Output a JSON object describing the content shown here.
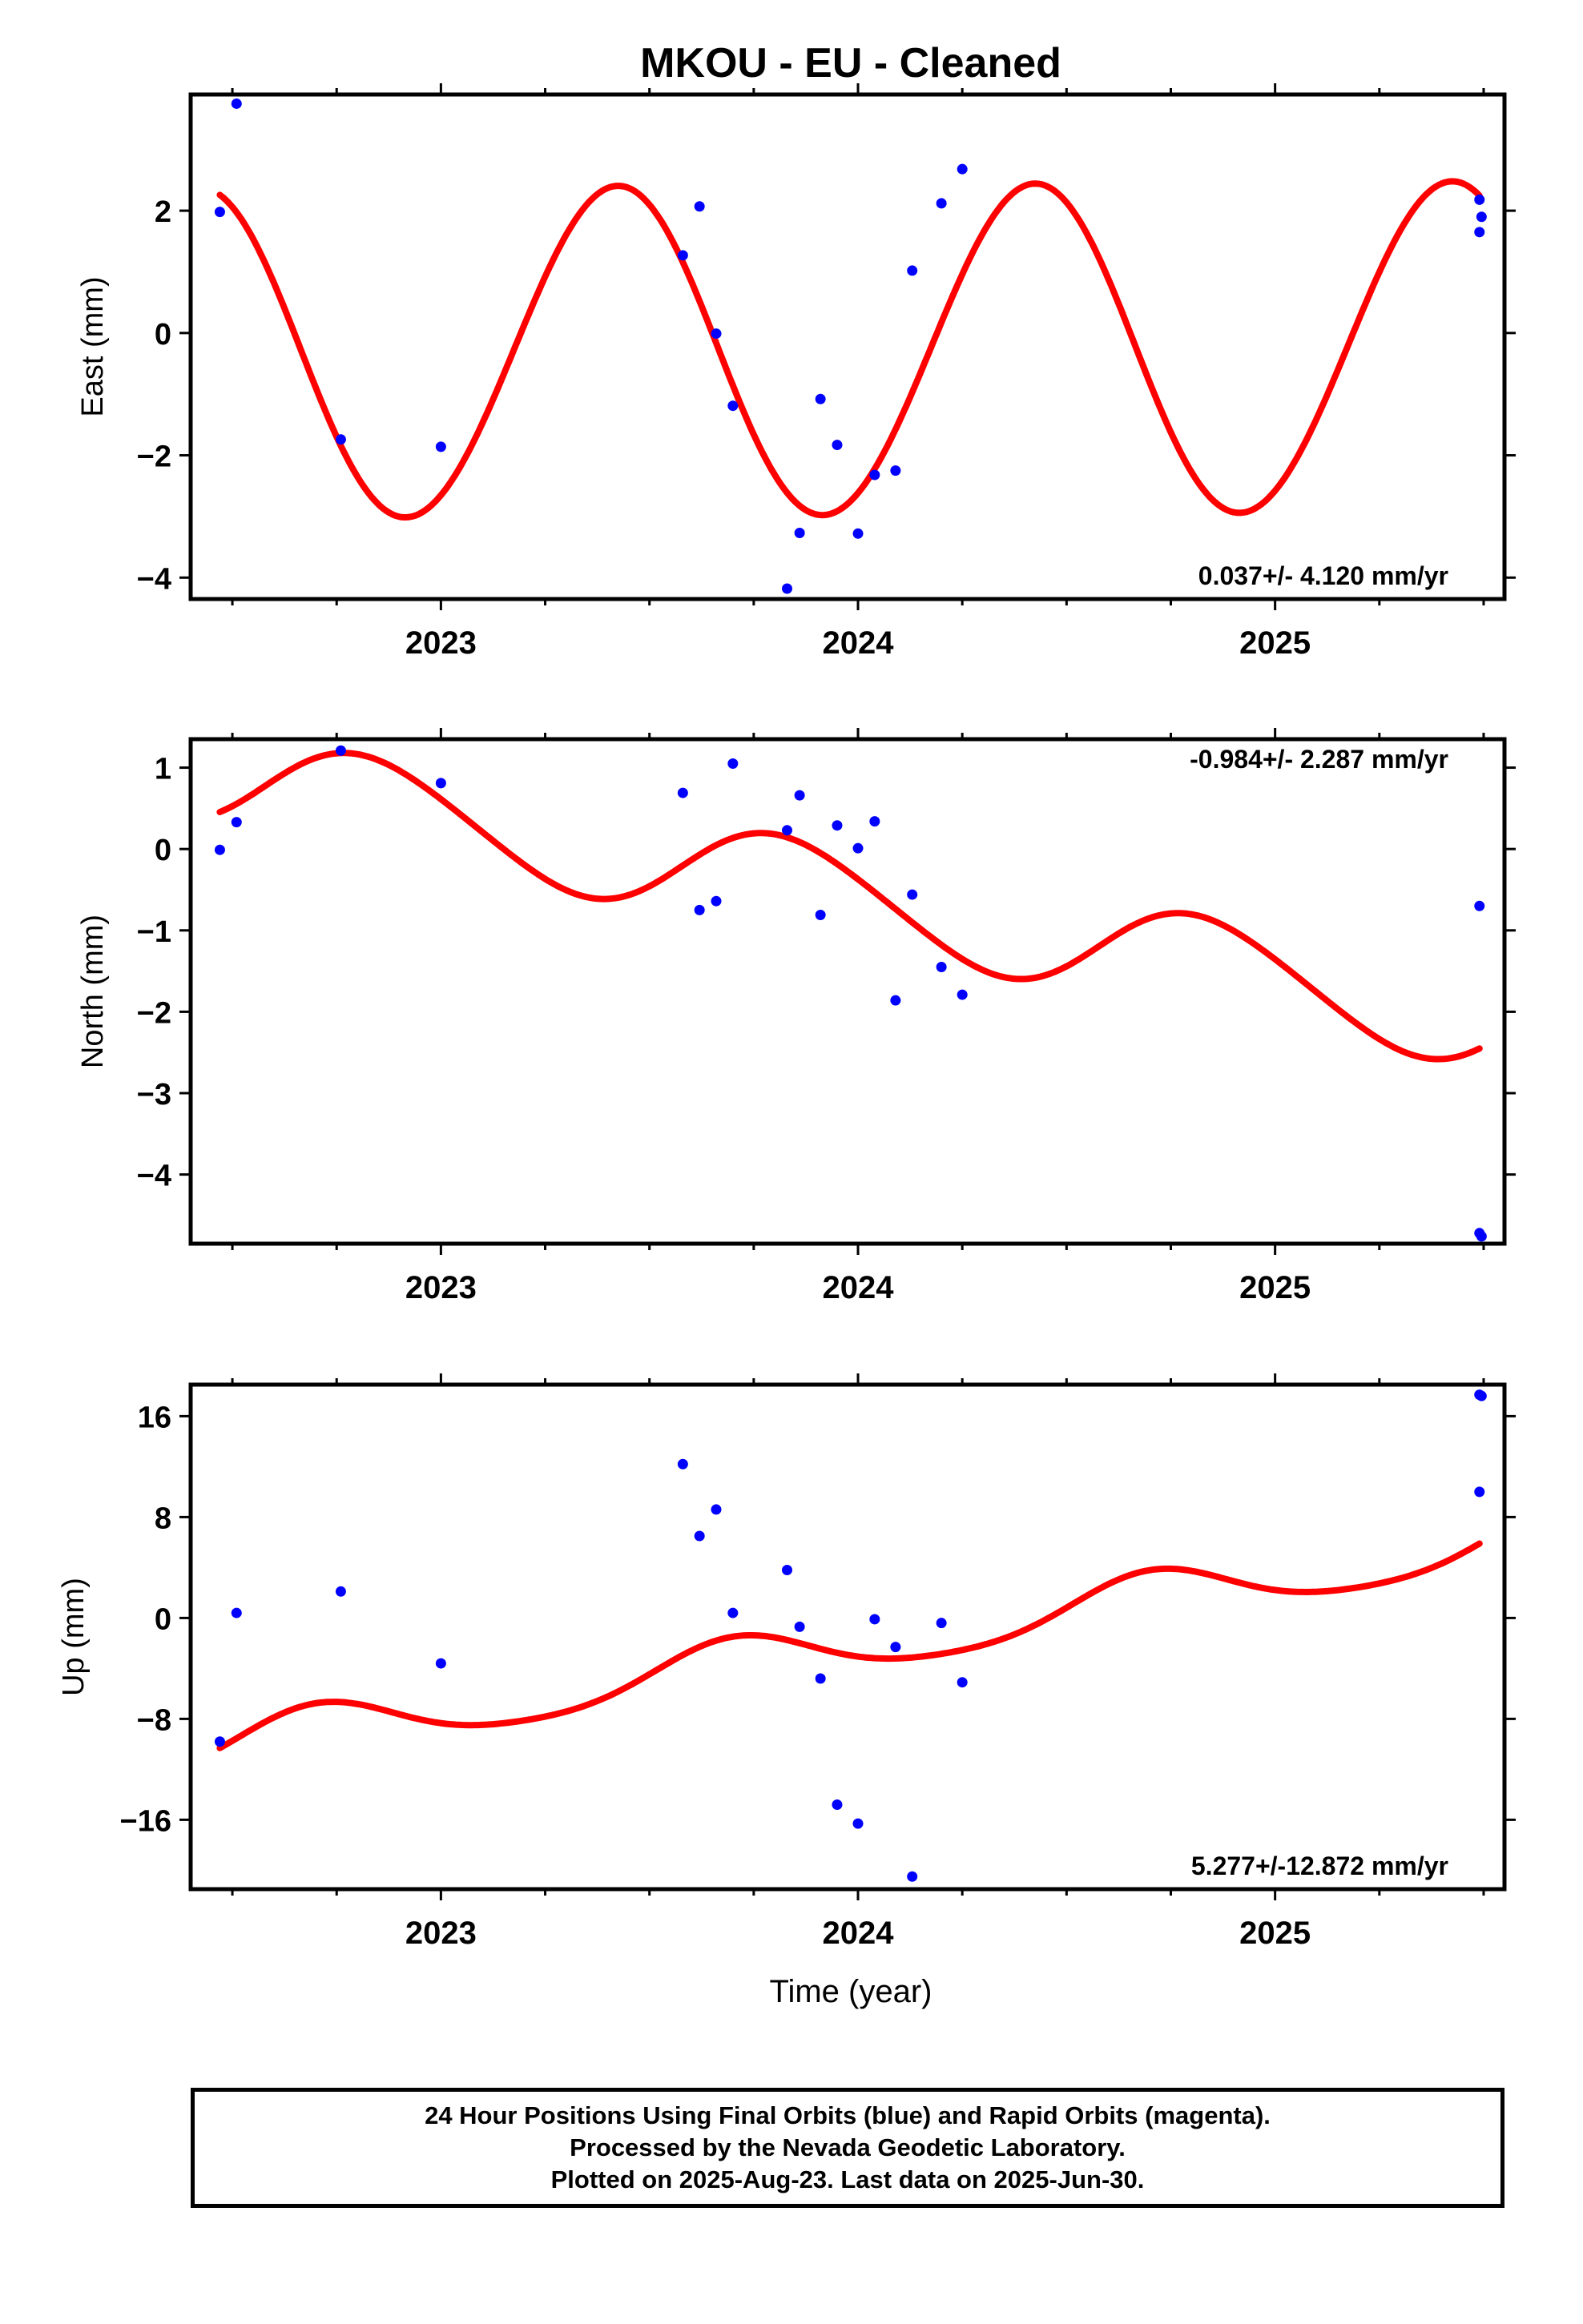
{
  "title": "MKOU  - EU - Cleaned",
  "xlabel": "Time (year)",
  "footnote": [
    "24 Hour Positions Using Final Orbits (blue) and Rapid Orbits (magenta).",
    "Processed by the Nevada Geodetic Laboratory.",
    "Plotted on 2025-Aug-23. Last data on 2025-Jun-30."
  ],
  "colors": {
    "points": "#0000ff",
    "fit": "#ff0000",
    "frame": "#000000"
  },
  "chart_data": [
    {
      "type": "scatter",
      "ylabel": "East (mm)",
      "rate": "0.037+/- 4.120 mm/yr",
      "rate_position": "bottom-right",
      "xlim": [
        2022.4,
        2025.55
      ],
      "ylim": [
        -4.35,
        3.9
      ],
      "xticks": [
        2023,
        2024,
        2025
      ],
      "yticks": [
        -4,
        -2,
        0,
        2
      ],
      "ytick_labels": [
        "−4",
        "−2",
        "0",
        "2"
      ],
      "points": [
        [
          2022.47,
          1.98
        ],
        [
          2022.51,
          3.75
        ],
        [
          2022.76,
          -1.74
        ],
        [
          2023.0,
          -1.86
        ],
        [
          2023.58,
          1.27
        ],
        [
          2023.62,
          2.07
        ],
        [
          2023.66,
          -0.01
        ],
        [
          2023.7,
          -1.19
        ],
        [
          2023.83,
          -4.18
        ],
        [
          2023.86,
          -3.27
        ],
        [
          2023.91,
          -1.08
        ],
        [
          2023.95,
          -1.83
        ],
        [
          2024.0,
          -3.28
        ],
        [
          2024.04,
          -2.32
        ],
        [
          2024.09,
          -2.25
        ],
        [
          2024.13,
          1.02
        ],
        [
          2024.2,
          2.12
        ],
        [
          2024.25,
          2.68
        ],
        [
          2025.49,
          2.18
        ],
        [
          2025.495,
          1.9
        ],
        [
          2025.49,
          1.65
        ]
      ],
      "model": {
        "offset": -0.3,
        "trend": 0.037,
        "annual_amp": 2.7,
        "annual_peak": 2023.42,
        "semi_amp": 0.05,
        "semi_peak": 2023.0,
        "t0": 2024.0
      }
    },
    {
      "type": "scatter",
      "ylabel": "North (mm)",
      "rate": "-0.984+/- 2.287 mm/yr",
      "rate_position": "top-right",
      "xlim": [
        2022.4,
        2025.55
      ],
      "ylim": [
        -4.85,
        1.35
      ],
      "xticks": [
        2023,
        2024,
        2025
      ],
      "yticks": [
        -4,
        -3,
        -2,
        -1,
        0,
        1
      ],
      "ytick_labels": [
        "−4",
        "−3",
        "−2",
        "−1",
        "0",
        "1"
      ],
      "points": [
        [
          2022.47,
          -0.01
        ],
        [
          2022.51,
          0.33
        ],
        [
          2022.76,
          1.21
        ],
        [
          2023.0,
          0.81
        ],
        [
          2023.58,
          0.69
        ],
        [
          2023.62,
          -0.75
        ],
        [
          2023.66,
          -0.64
        ],
        [
          2023.7,
          1.05
        ],
        [
          2023.83,
          0.23
        ],
        [
          2023.86,
          0.66
        ],
        [
          2023.91,
          -0.81
        ],
        [
          2023.95,
          0.29
        ],
        [
          2024.0,
          0.01
        ],
        [
          2024.04,
          0.34
        ],
        [
          2024.09,
          -1.86
        ],
        [
          2024.13,
          -0.56
        ],
        [
          2024.2,
          -1.45
        ],
        [
          2024.25,
          -1.79
        ],
        [
          2025.49,
          -0.7
        ],
        [
          2025.49,
          -4.72
        ],
        [
          2025.495,
          -4.76
        ]
      ],
      "model": {
        "offset": -0.62,
        "trend": -0.984,
        "annual_amp": 0.6,
        "annual_peak": 2023.83,
        "semi_amp": 0.05,
        "semi_peak": 2023.2,
        "t0": 2024.0
      }
    },
    {
      "type": "scatter",
      "ylabel": "Up (mm)",
      "rate": "5.277+/-12.872 mm/yr",
      "rate_position": "bottom-right",
      "xlim": [
        2022.4,
        2025.55
      ],
      "ylim": [
        -21.5,
        18.5
      ],
      "xticks": [
        2023,
        2024,
        2025
      ],
      "yticks": [
        -16,
        -8,
        0,
        8,
        16
      ],
      "ytick_labels": [
        "−16",
        "−8",
        "0",
        "8",
        "16"
      ],
      "points": [
        [
          2022.47,
          -9.8
        ],
        [
          2022.51,
          0.4
        ],
        [
          2022.76,
          2.1
        ],
        [
          2023.0,
          -3.6
        ],
        [
          2023.58,
          12.2
        ],
        [
          2023.62,
          6.5
        ],
        [
          2023.66,
          8.6
        ],
        [
          2023.7,
          0.4
        ],
        [
          2023.83,
          3.8
        ],
        [
          2023.86,
          -0.7
        ],
        [
          2023.91,
          -4.8
        ],
        [
          2023.95,
          -14.8
        ],
        [
          2024.0,
          -16.3
        ],
        [
          2024.04,
          -0.1
        ],
        [
          2024.09,
          -2.3
        ],
        [
          2024.13,
          -20.5
        ],
        [
          2024.2,
          -0.4
        ],
        [
          2024.25,
          -5.1
        ],
        [
          2025.49,
          17.7
        ],
        [
          2025.495,
          17.6
        ],
        [
          2025.49,
          10.0
        ]
      ],
      "model": {
        "offset": -2.2,
        "trend": 5.277,
        "annual_amp": 2.0,
        "annual_peak": 2023.7,
        "semi_amp": 0.3,
        "semi_peak": 2023.2,
        "t0": 2024.0
      }
    }
  ]
}
